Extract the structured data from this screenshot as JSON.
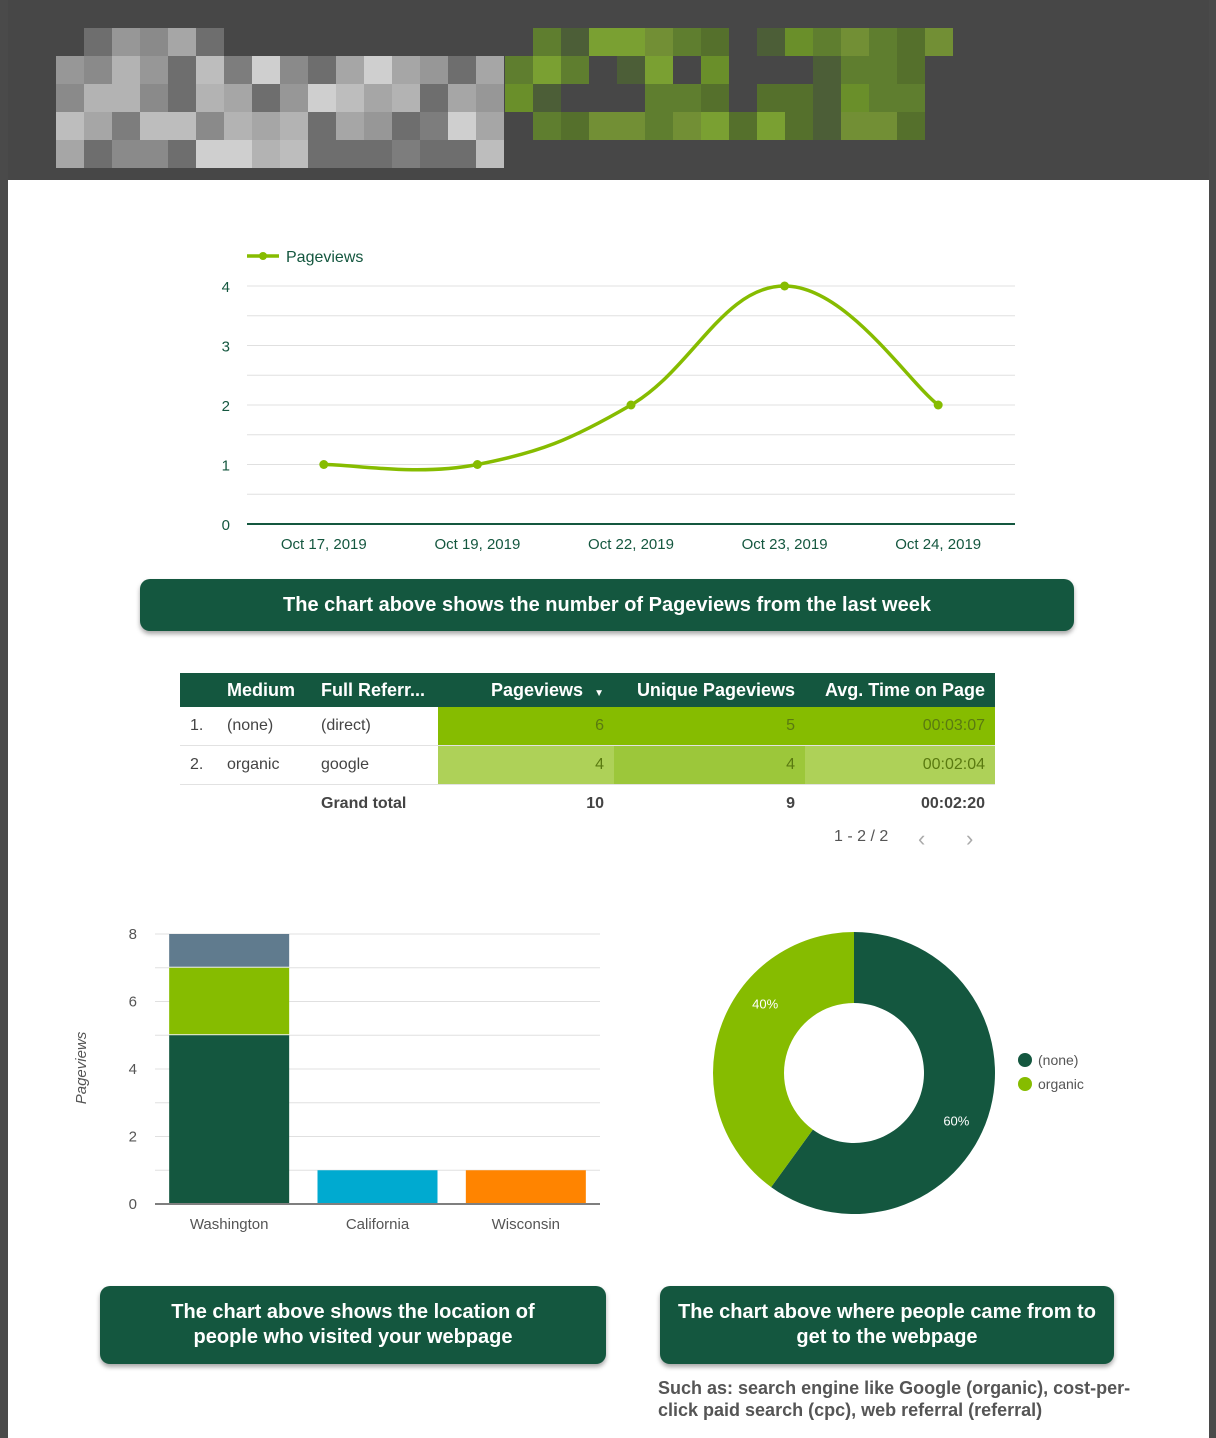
{
  "colors": {
    "header_bg": "#474747",
    "dark_green": "#14573f",
    "lime": "#86bc00",
    "lime_light": "#aed158",
    "slate": "#607b8e",
    "cyan": "#00aad0",
    "orange": "#ff8400"
  },
  "line_chart": {
    "chart_data": {
      "type": "line",
      "legend": "Pageviews",
      "series": [
        {
          "name": "Pageviews",
          "values": [
            1,
            1,
            2,
            4,
            2
          ]
        }
      ],
      "categories": [
        "Oct 17, 2019",
        "Oct 19, 2019",
        "Oct 22, 2019",
        "Oct 23, 2019",
        "Oct 24, 2019"
      ],
      "yticks": [
        "0",
        "1",
        "2",
        "3",
        "4"
      ],
      "ylim": [
        0,
        4
      ],
      "grid": true,
      "legend_position": "top-left"
    },
    "caption": "The chart above shows the number of Pageviews from the last week"
  },
  "table": {
    "headers": [
      "Medium",
      "Full Referr...",
      "Pageviews",
      "Unique Pageviews",
      "Avg. Time on Page"
    ],
    "sort_indicator": "▼",
    "rows": [
      {
        "index": "1.",
        "medium": "(none)",
        "referrer": "(direct)",
        "pageviews": "6",
        "unique": "5",
        "avg_time": "00:03:07"
      },
      {
        "index": "2.",
        "medium": "organic",
        "referrer": "google",
        "pageviews": "4",
        "unique": "4",
        "avg_time": "00:02:04"
      }
    ],
    "total": {
      "label": "Grand total",
      "pageviews": "10",
      "unique": "9",
      "avg_time": "00:02:20"
    },
    "pager": "1 - 2 / 2"
  },
  "bar_chart": {
    "chart_data": {
      "type": "bar",
      "stacked": true,
      "categories": [
        "Washington",
        "California",
        "Wisconsin"
      ],
      "stacks": [
        [
          {
            "value": 5,
            "color": "#14573f"
          },
          {
            "value": 2,
            "color": "#86bc00"
          },
          {
            "value": 1,
            "color": "#607b8e"
          }
        ],
        [
          {
            "value": 1,
            "color": "#00aad0"
          }
        ],
        [
          {
            "value": 1,
            "color": "#ff8400"
          }
        ]
      ],
      "ylabel": "Pageviews",
      "yticks": [
        "0",
        "2",
        "4",
        "6",
        "8"
      ],
      "ylim": [
        0,
        8
      ],
      "grid": true
    },
    "caption_lines": [
      "The chart above shows the location of",
      "people who visited your webpage"
    ]
  },
  "donut_chart": {
    "chart_data": {
      "type": "pie",
      "donut": true,
      "slices": [
        {
          "label": "(none)",
          "value": 60,
          "display": "60%",
          "color": "#14573f"
        },
        {
          "label": "organic",
          "value": 40,
          "display": "40%",
          "color": "#86bc00"
        }
      ],
      "legend_position": "right"
    },
    "caption_lines": [
      "The chart above where people came from to",
      "get to the webpage"
    ],
    "note_lines": [
      "Such as: search engine like Google (organic), cost-per-",
      "click paid search (cpc), web referral (referral)"
    ]
  }
}
